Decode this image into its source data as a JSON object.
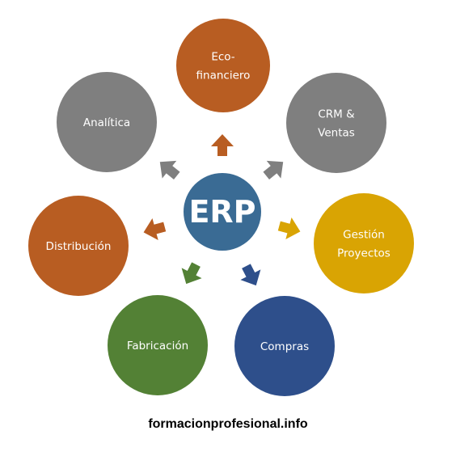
{
  "diagram": {
    "center": {
      "label": "ERP",
      "color": "#3a6b94"
    },
    "nodes": [
      {
        "id": "eco-financiero",
        "lines": [
          "Eco-",
          "financiero"
        ],
        "color": "#b85d22"
      },
      {
        "id": "crm-ventas",
        "lines": [
          "CRM &",
          "Ventas"
        ],
        "color": "#7f7f7f"
      },
      {
        "id": "gestion-proyectos",
        "lines": [
          "Gestión",
          "Proyectos"
        ],
        "color": "#d9a403"
      },
      {
        "id": "compras",
        "lines": [
          "Compras"
        ],
        "color": "#2e4f8b"
      },
      {
        "id": "fabricacion",
        "lines": [
          "Fabricación"
        ],
        "color": "#538135"
      },
      {
        "id": "distribucion",
        "lines": [
          "Distribución"
        ],
        "color": "#b85d22"
      },
      {
        "id": "analitica",
        "lines": [
          "Analítica"
        ],
        "color": "#7f7f7f"
      }
    ]
  },
  "footer": {
    "text": "formacionprofesional.info"
  }
}
